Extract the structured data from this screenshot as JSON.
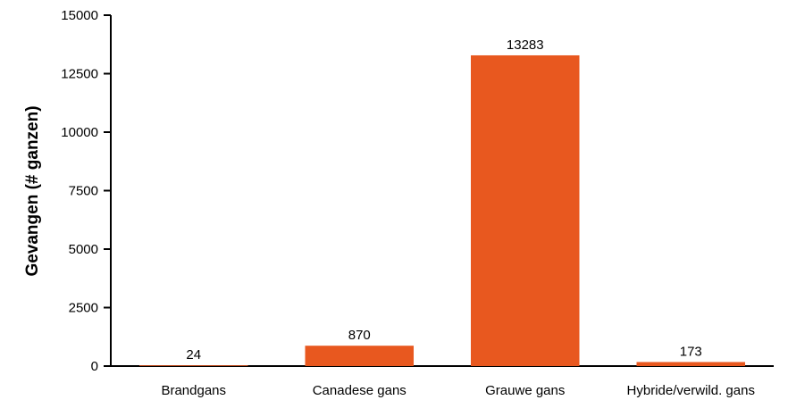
{
  "chart_data": {
    "type": "bar",
    "title": "",
    "xlabel": "",
    "ylabel": "Gevangen (# ganzen)",
    "categories": [
      "Brandgans",
      "Canadese gans",
      "Grauwe gans",
      "Hybride/verwild. gans"
    ],
    "values": [
      24,
      870,
      13283,
      173
    ],
    "value_labels": [
      "24",
      "870",
      "13283",
      "173"
    ],
    "ylim": [
      0,
      15000
    ],
    "yticks": [
      0,
      2500,
      5000,
      7500,
      10000,
      12500,
      15000
    ],
    "ytick_labels": [
      "0",
      "2500",
      "5000",
      "7500",
      "10000",
      "12500",
      "15000"
    ],
    "bar_color": "#E8581F",
    "grid": false,
    "legend": "none"
  }
}
